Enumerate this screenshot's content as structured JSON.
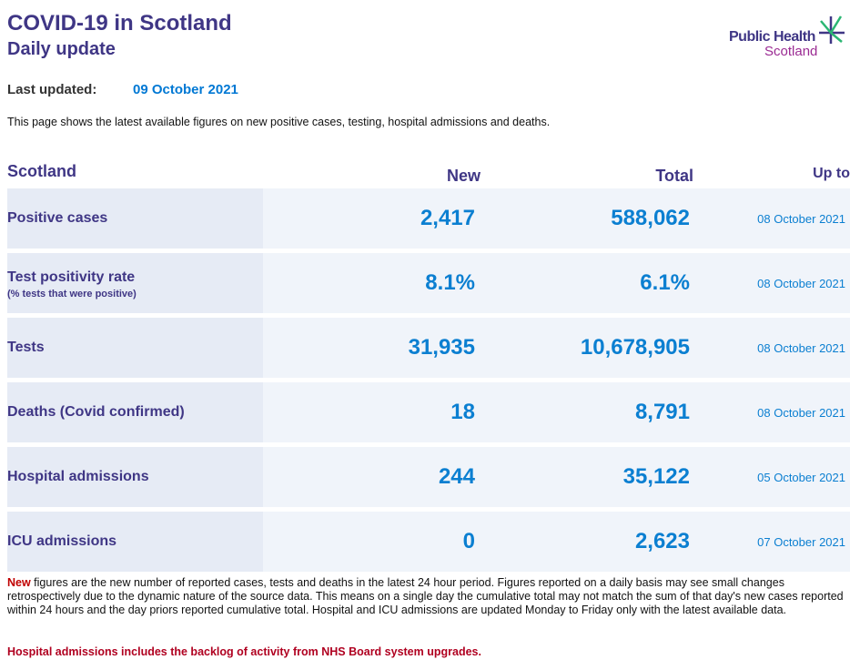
{
  "header": {
    "title": "COVID-19 in Scotland",
    "subtitle": "Daily update"
  },
  "logo": {
    "line1": "Public Health",
    "line2": "Scotland",
    "icon": "phs-star-icon"
  },
  "last_updated": {
    "label": "Last updated:",
    "value": "09 October 2021"
  },
  "intro": "This page shows the latest available figures on new positive cases, testing, hospital admissions and deaths.",
  "table": {
    "headers": {
      "area": "Scotland",
      "new": "New",
      "total": "Total",
      "up_to": "Up to"
    },
    "rows": [
      {
        "label": "Positive cases",
        "sublabel": "",
        "new": "2,417",
        "total": "588,062",
        "up_to": "08 October 2021"
      },
      {
        "label": "Test positivity rate",
        "sublabel": "(% tests that were positive)",
        "new": "8.1%",
        "total": "6.1%",
        "up_to": "08 October 2021"
      },
      {
        "label": "Tests",
        "sublabel": "",
        "new": "31,935",
        "total": "10,678,905",
        "up_to": "08 October 2021"
      },
      {
        "label": "Deaths (Covid confirmed)",
        "sublabel": "",
        "new": "18",
        "total": "8,791",
        "up_to": "08 October 2021"
      },
      {
        "label": "Hospital admissions",
        "sublabel": "",
        "new": "244",
        "total": "35,122",
        "up_to": "05 October 2021"
      },
      {
        "label": "ICU admissions",
        "sublabel": "",
        "new": "0",
        "total": "2,623",
        "up_to": "07 October 2021"
      }
    ]
  },
  "notes": {
    "new_word": "New",
    "text": " figures are the new number of reported cases, tests and deaths in the latest 24 hour period. Figures reported on a daily basis may see small changes retrospectively due to the dynamic nature of the source data. This means on a single day the cumulative total may not match the sum of that day's new cases reported within 24 hours and the day priors reported cumulative total. Hospital and ICU admissions are updated Monday to Friday only with the latest available data.",
    "backlog": "Hospital admissions includes the backlog of activity from NHS Board system upgrades."
  },
  "colors": {
    "brand_purple": "#3f3685",
    "value_blue": "#0b7fd1",
    "alert_red": "#c00000",
    "logo_magenta": "#9b2b93"
  }
}
